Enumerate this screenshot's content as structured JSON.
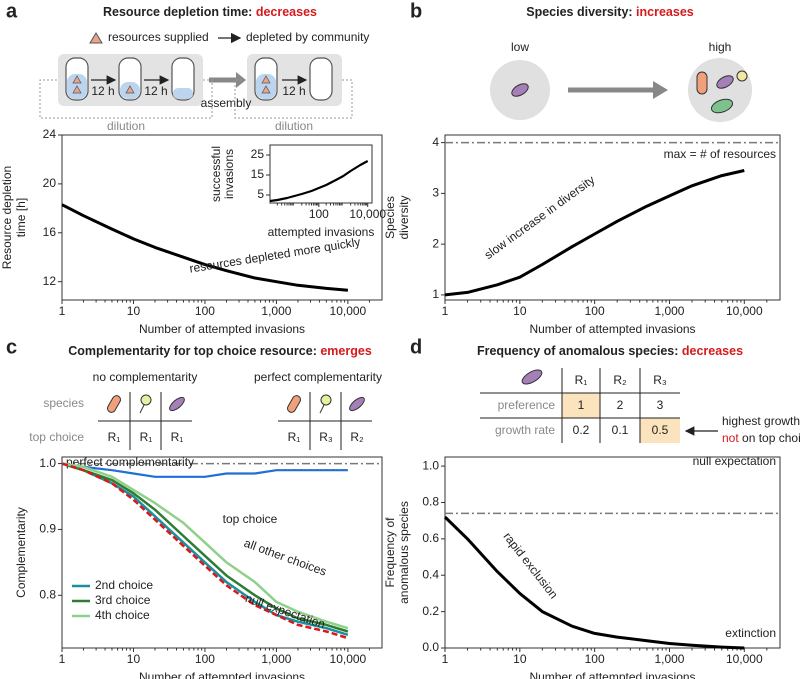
{
  "chart_data": [
    {
      "type": "line",
      "panel": "a",
      "title": "Resource depletion time:",
      "title_emphasis": "decreases",
      "diagram": {
        "legend_supplied": "resources supplied",
        "legend_depleted": "depleted by community",
        "interval": "12 h",
        "step": "assembly",
        "dilution": "dilution"
      },
      "x": [
        1,
        2,
        5,
        10,
        20,
        50,
        100,
        200,
        500,
        1000,
        2000,
        5000,
        10000
      ],
      "values": [
        18.3,
        17.4,
        16.3,
        15.5,
        14.8,
        14.0,
        13.4,
        12.9,
        12.3,
        12.0,
        11.7,
        11.45,
        11.3
      ],
      "color": "#000000",
      "xscale": "log",
      "xlim": [
        1,
        30000
      ],
      "ylim": [
        10.5,
        24
      ],
      "xticks": [
        1,
        10,
        100,
        {
          "value": 1000,
          "label": "1,000"
        },
        {
          "value": 10000,
          "label": "10,000"
        }
      ],
      "yticks": [
        12,
        16,
        20,
        24
      ],
      "xlabel": "Number of attempted invasions",
      "ylabel": [
        "Resource depletion",
        "time [h]"
      ],
      "annotation": "resources depleted more quickly",
      "inset": {
        "type": "line",
        "x": [
          1,
          2,
          5,
          10,
          20,
          50,
          100,
          200,
          500,
          1000,
          2000,
          5000,
          10000
        ],
        "values": [
          2,
          2.5,
          3.5,
          4.5,
          5.5,
          7,
          8.5,
          10,
          12.5,
          14.5,
          17,
          20,
          22
        ],
        "color": "#000000",
        "xscale": "log",
        "xlim": [
          1,
          15000
        ],
        "ylim": [
          1,
          30
        ],
        "xticks": [
          100,
          {
            "value": 10000,
            "label": "10,000"
          }
        ],
        "yticks": [
          5,
          15,
          25
        ],
        "xlabel": "attempted invasions",
        "ylabel": [
          "successful",
          "invasions"
        ]
      }
    },
    {
      "type": "line",
      "panel": "b",
      "title": "Species diversity:",
      "title_emphasis": "increases",
      "diagram": {
        "low": "low",
        "high": "high"
      },
      "x": [
        1,
        2,
        5,
        10,
        20,
        50,
        100,
        200,
        500,
        1000,
        2000,
        5000,
        10000
      ],
      "values": [
        1.0,
        1.05,
        1.2,
        1.35,
        1.6,
        1.95,
        2.2,
        2.45,
        2.75,
        2.95,
        3.15,
        3.35,
        3.45
      ],
      "color": "#000000",
      "xscale": "log",
      "xlim": [
        1,
        30000
      ],
      "ylim": [
        0.9,
        4.15
      ],
      "xticks": [
        1,
        10,
        100,
        {
          "value": 1000,
          "label": "1,000"
        },
        {
          "value": 10000,
          "label": "10,000"
        }
      ],
      "yticks": [
        1,
        2,
        3,
        4
      ],
      "xlabel": "Number of attempted invasions",
      "ylabel": [
        "Species",
        "diversity"
      ],
      "hline": {
        "value": 4,
        "label": "max = # of resources"
      },
      "annotation": "slow increase in diversity"
    },
    {
      "type": "line",
      "panel": "c",
      "title": "Complementarity for top choice resource:",
      "title_emphasis": "emerges",
      "diagram": {
        "left_title": "no complementarity",
        "right_title": "perfect complementarity",
        "row_labels": [
          "species",
          "top choice"
        ],
        "left_top": [
          "R₁",
          "R₁",
          "R₁"
        ],
        "right_top": [
          "R₁",
          "R₃",
          "R₂"
        ]
      },
      "x": [
        1,
        2,
        5,
        10,
        20,
        50,
        100,
        200,
        500,
        1000,
        2000,
        5000,
        10000
      ],
      "series": [
        {
          "name": "top choice",
          "color": "#1f6fd6",
          "label_position": "inline",
          "values": [
            1.0,
            0.995,
            0.99,
            0.985,
            0.98,
            0.98,
            0.98,
            0.985,
            0.985,
            0.99,
            0.99,
            0.99,
            0.99
          ]
        },
        {
          "name": "2nd choice",
          "color": "#1a8fa0",
          "values": [
            1.0,
            0.99,
            0.97,
            0.95,
            0.92,
            0.88,
            0.85,
            0.82,
            0.79,
            0.77,
            0.76,
            0.75,
            0.74
          ]
        },
        {
          "name": "3rd choice",
          "color": "#2e7d32",
          "values": [
            1.0,
            0.99,
            0.975,
            0.955,
            0.93,
            0.89,
            0.86,
            0.83,
            0.8,
            0.78,
            0.765,
            0.755,
            0.745
          ]
        },
        {
          "name": "4th choice",
          "color": "#8fd08a",
          "values": [
            1.0,
            0.995,
            0.98,
            0.96,
            0.94,
            0.91,
            0.88,
            0.85,
            0.82,
            0.79,
            0.775,
            0.76,
            0.75
          ]
        },
        {
          "name": "null expectation",
          "color": "#d7191c",
          "dash": "dashed",
          "label_position": "inline",
          "values": [
            1.0,
            0.99,
            0.97,
            0.945,
            0.915,
            0.875,
            0.845,
            0.815,
            0.785,
            0.77,
            0.755,
            0.745,
            0.735
          ]
        }
      ],
      "legend": "lower left",
      "xscale": "log",
      "xlim": [
        1,
        30000
      ],
      "ylim": [
        0.72,
        1.01
      ],
      "xticks": [
        1,
        10,
        100,
        {
          "value": 1000,
          "label": "1,000"
        },
        {
          "value": 10000,
          "label": "10,000"
        }
      ],
      "yticks": [
        0.8,
        0.9,
        {
          "value": 1,
          "label": "1.0"
        }
      ],
      "xlabel": "Number of attempted invasions",
      "ylabel": [
        "Complementarity"
      ],
      "hline": {
        "value": 1,
        "label": "perfect complementarity"
      },
      "annotation": "all other choices"
    },
    {
      "type": "line",
      "panel": "d",
      "title": "Frequency of anomalous species:",
      "title_emphasis": "decreases",
      "diagram": {
        "columns": [
          "R₁",
          "R₂",
          "R₃"
        ],
        "rows": [
          {
            "label": "preference",
            "values": [
              1,
              2,
              3
            ]
          },
          {
            "label": "growth rate",
            "values": [
              0.2,
              0.1,
              0.5
            ]
          }
        ],
        "note": [
          "highest growth",
          "not",
          "on top choice"
        ]
      },
      "x": [
        1,
        2,
        5,
        10,
        20,
        50,
        100,
        200,
        500,
        1000,
        2000,
        5000,
        10000
      ],
      "values": [
        0.72,
        0.6,
        0.42,
        0.3,
        0.2,
        0.12,
        0.08,
        0.06,
        0.04,
        0.025,
        0.015,
        0.005,
        0
      ],
      "color": "#000000",
      "xscale": "log",
      "xlim": [
        1,
        30000
      ],
      "ylim": [
        0,
        1.05
      ],
      "xticks": [
        1,
        10,
        100,
        {
          "value": 1000,
          "label": "1,000"
        },
        {
          "value": 10000,
          "label": "10,000"
        }
      ],
      "yticks": [
        {
          "value": 0,
          "label": "0.0"
        },
        0.2,
        0.4,
        0.6,
        0.8,
        {
          "value": 1,
          "label": "1.0"
        }
      ],
      "xlabel": "Number of attempted invasions",
      "ylabel": [
        "Frequency of",
        "anomalous species"
      ],
      "hline": {
        "value": 0.74,
        "label": "null expectation"
      },
      "annotation": "rapid exclusion",
      "end_label": "extinction"
    }
  ]
}
